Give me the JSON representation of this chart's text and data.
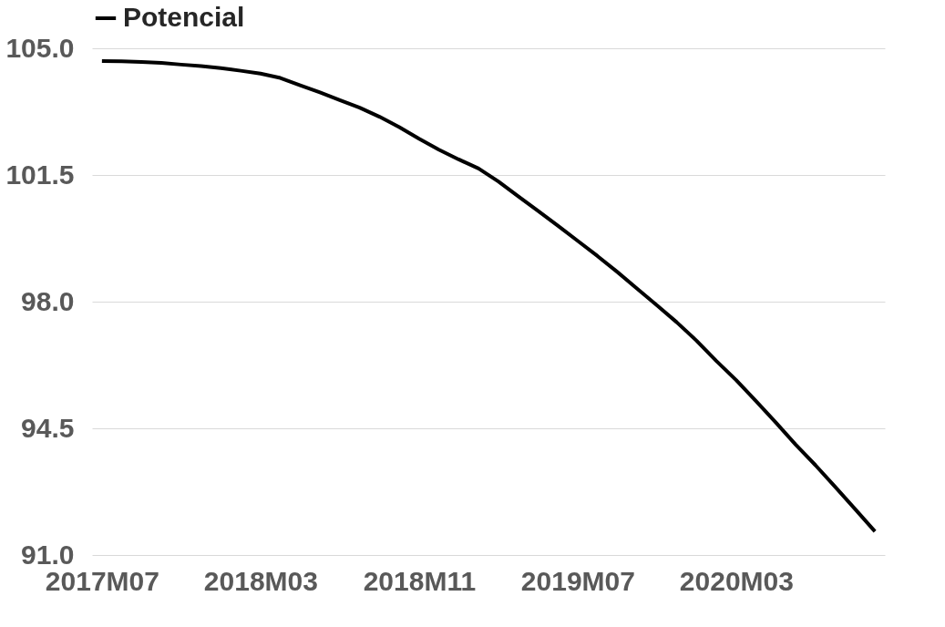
{
  "chart_data": {
    "type": "line",
    "categories": [
      "2017M07",
      null,
      null,
      null,
      null,
      null,
      null,
      null,
      "2018M03",
      null,
      null,
      null,
      null,
      null,
      null,
      null,
      "2018M11",
      null,
      null,
      null,
      null,
      null,
      null,
      null,
      "2019M07",
      null,
      null,
      null,
      null,
      null,
      null,
      null,
      "2020M03",
      null,
      null,
      null,
      null,
      null,
      null,
      null
    ],
    "series": [
      {
        "name": "Potencial",
        "color": "#000000",
        "values": [
          104.65,
          104.64,
          104.62,
          104.6,
          104.55,
          104.51,
          104.45,
          104.38,
          104.3,
          104.18,
          103.98,
          103.78,
          103.57,
          103.36,
          103.11,
          102.82,
          102.5,
          102.2,
          101.93,
          101.68,
          101.32,
          100.91,
          100.51,
          100.1,
          99.68,
          99.26,
          98.82,
          98.36,
          97.9,
          97.43,
          96.92,
          96.36,
          95.83,
          95.25,
          94.66,
          94.05,
          93.48,
          92.88,
          92.27,
          91.65
        ]
      }
    ],
    "ylim": [
      91.0,
      105.0
    ],
    "yticks": [
      {
        "value": 91.0,
        "label": "91.0"
      },
      {
        "value": 94.5,
        "label": "94.5"
      },
      {
        "value": 98.0,
        "label": "98.0"
      },
      {
        "value": 101.5,
        "label": "101.5"
      },
      {
        "value": 105.0,
        "label": "105.0"
      }
    ],
    "grid": "y",
    "legend": "top",
    "marker": "none",
    "line_style": "solid"
  }
}
